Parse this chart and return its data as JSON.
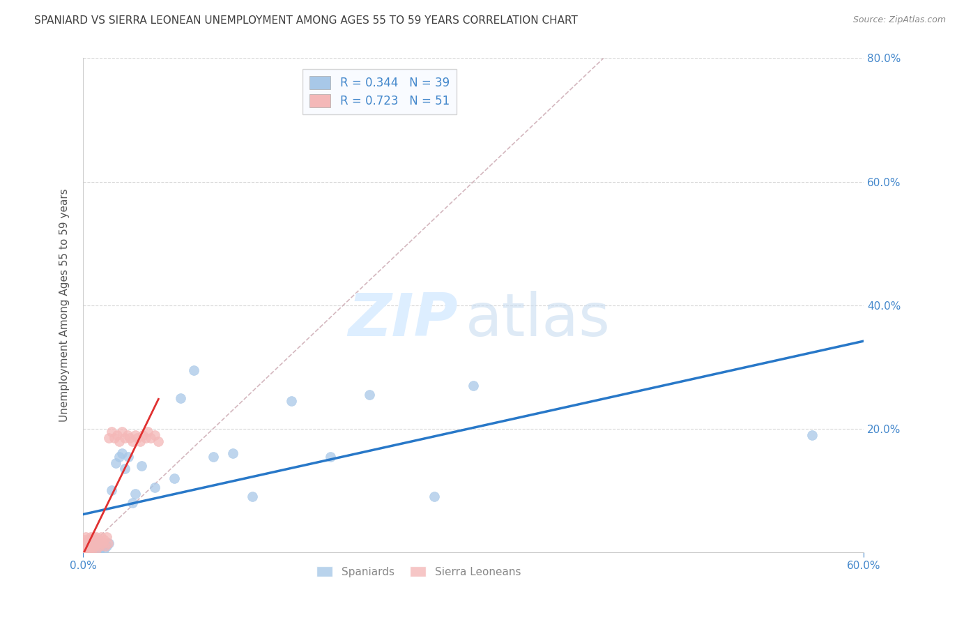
{
  "title": "SPANIARD VS SIERRA LEONEAN UNEMPLOYMENT AMONG AGES 55 TO 59 YEARS CORRELATION CHART",
  "source_text": "Source: ZipAtlas.com",
  "ylabel": "Unemployment Among Ages 55 to 59 years",
  "xlim": [
    0.0,
    0.6
  ],
  "ylim": [
    0.0,
    0.8
  ],
  "xticks": [
    0.0,
    0.6
  ],
  "yticks": [
    0.0,
    0.2,
    0.4,
    0.6,
    0.8
  ],
  "legend1_R": "0.344",
  "legend1_N": "39",
  "legend2_R": "0.723",
  "legend2_N": "51",
  "legend_label1": "Spaniards",
  "legend_label2": "Sierra Leoneans",
  "watermark_zip": "ZIP",
  "watermark_atlas": "atlas",
  "spaniard_color": "#a8c8e8",
  "sierra_color": "#f4b8b8",
  "spaniard_line_color": "#2878c8",
  "sierra_line_color": "#e03030",
  "ref_line_color": "#d0b0b8",
  "axis_color": "#4488cc",
  "background_color": "#ffffff",
  "spaniard_x": [
    0.001,
    0.002,
    0.003,
    0.004,
    0.005,
    0.006,
    0.007,
    0.008,
    0.009,
    0.01,
    0.011,
    0.012,
    0.013,
    0.015,
    0.016,
    0.018,
    0.02,
    0.022,
    0.025,
    0.028,
    0.03,
    0.032,
    0.035,
    0.038,
    0.04,
    0.045,
    0.055,
    0.07,
    0.075,
    0.085,
    0.1,
    0.115,
    0.13,
    0.16,
    0.19,
    0.22,
    0.27,
    0.3,
    0.56
  ],
  "spaniard_y": [
    0.01,
    0.005,
    0.015,
    0.005,
    0.01,
    0.005,
    0.01,
    0.005,
    0.01,
    0.005,
    0.01,
    0.015,
    0.005,
    0.01,
    0.005,
    0.01,
    0.015,
    0.1,
    0.145,
    0.155,
    0.16,
    0.135,
    0.155,
    0.08,
    0.095,
    0.14,
    0.105,
    0.12,
    0.25,
    0.295,
    0.155,
    0.16,
    0.09,
    0.245,
    0.155,
    0.255,
    0.09,
    0.27,
    0.19
  ],
  "sierra_x": [
    0.0,
    0.0,
    0.0,
    0.001,
    0.001,
    0.002,
    0.002,
    0.003,
    0.003,
    0.004,
    0.004,
    0.005,
    0.005,
    0.006,
    0.006,
    0.007,
    0.007,
    0.008,
    0.008,
    0.009,
    0.009,
    0.01,
    0.01,
    0.011,
    0.012,
    0.013,
    0.014,
    0.015,
    0.016,
    0.017,
    0.018,
    0.019,
    0.02,
    0.022,
    0.024,
    0.026,
    0.028,
    0.03,
    0.032,
    0.034,
    0.036,
    0.038,
    0.04,
    0.042,
    0.044,
    0.046,
    0.048,
    0.05,
    0.052,
    0.055,
    0.058
  ],
  "sierra_y": [
    0.005,
    0.01,
    0.015,
    0.005,
    0.02,
    0.01,
    0.025,
    0.005,
    0.015,
    0.01,
    0.02,
    0.005,
    0.015,
    0.025,
    0.01,
    0.02,
    0.005,
    0.015,
    0.025,
    0.01,
    0.02,
    0.005,
    0.025,
    0.015,
    0.02,
    0.01,
    0.025,
    0.015,
    0.02,
    0.01,
    0.025,
    0.015,
    0.185,
    0.195,
    0.185,
    0.19,
    0.18,
    0.195,
    0.185,
    0.19,
    0.185,
    0.18,
    0.19,
    0.185,
    0.18,
    0.19,
    0.185,
    0.195,
    0.185,
    0.19,
    0.18
  ]
}
